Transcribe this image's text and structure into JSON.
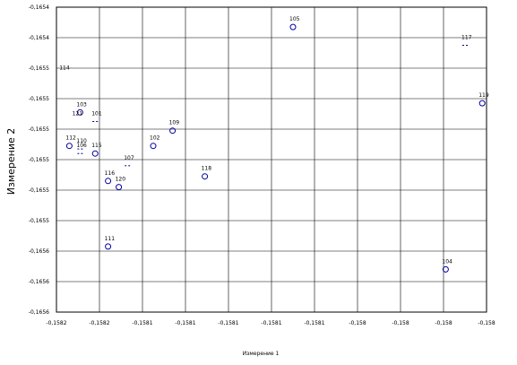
{
  "chart_data": {
    "type": "scatter",
    "xlabel": "Измерение 1",
    "ylabel": "Измерение 2",
    "xlim": [
      -0.1582,
      -0.158
    ],
    "ylim": [
      -0.1656,
      -0.1654
    ],
    "x_ticks": [
      {
        "v": -0.1582,
        "label": "-0,1582"
      },
      {
        "v": -0.15818,
        "label": "-0,1582"
      },
      {
        "v": -0.15816,
        "label": "-0,1581"
      },
      {
        "v": -0.15814,
        "label": "-0,1581"
      },
      {
        "v": -0.15812,
        "label": "-0,1581"
      },
      {
        "v": -0.1581,
        "label": "-0,1581"
      },
      {
        "v": -0.15808,
        "label": "-0,1581"
      },
      {
        "v": -0.15806,
        "label": "-0,158"
      },
      {
        "v": -0.15804,
        "label": "-0,158"
      },
      {
        "v": -0.15802,
        "label": "-0,158"
      },
      {
        "v": -0.158,
        "label": "-0,158"
      }
    ],
    "y_ticks": [
      {
        "v": -0.1654,
        "label": "-0,1654"
      },
      {
        "v": -0.16542,
        "label": "-0,1654"
      },
      {
        "v": -0.16544,
        "label": "-0,1655"
      },
      {
        "v": -0.16546,
        "label": "-0,1655"
      },
      {
        "v": -0.16548,
        "label": "-0,1655"
      },
      {
        "v": -0.1655,
        "label": "-0,1655"
      },
      {
        "v": -0.16552,
        "label": "-0,1655"
      },
      {
        "v": -0.16554,
        "label": "-0,1655"
      },
      {
        "v": -0.16556,
        "label": "-0,1656"
      },
      {
        "v": -0.16558,
        "label": "-0,1656"
      },
      {
        "v": -0.1656,
        "label": "-0,1656"
      }
    ],
    "grid": true,
    "points": [
      {
        "label": "105",
        "x": -0.15809,
        "y": -0.165413,
        "marker": "circle"
      },
      {
        "label": "117",
        "x": -0.15801,
        "y": -0.165425,
        "marker": "dash"
      },
      {
        "label": "114",
        "x": -0.158197,
        "y": -0.165445,
        "marker": "none"
      },
      {
        "label": "119",
        "x": -0.158002,
        "y": -0.165463,
        "marker": "circle"
      },
      {
        "label": "103",
        "x": -0.158189,
        "y": -0.165469,
        "marker": "circle"
      },
      {
        "label": "121",
        "x": -0.158191,
        "y": -0.165475,
        "marker": "none"
      },
      {
        "label": "101",
        "x": -0.158182,
        "y": -0.165475,
        "marker": "dash"
      },
      {
        "label": "109",
        "x": -0.158146,
        "y": -0.165481,
        "marker": "circle"
      },
      {
        "label": "112",
        "x": -0.158194,
        "y": -0.165491,
        "marker": "circle"
      },
      {
        "label": "110",
        "x": -0.158189,
        "y": -0.165493,
        "marker": "dash"
      },
      {
        "label": "106",
        "x": -0.158189,
        "y": -0.165496,
        "marker": "dash"
      },
      {
        "label": "102",
        "x": -0.158155,
        "y": -0.165491,
        "marker": "circle"
      },
      {
        "label": "115",
        "x": -0.158182,
        "y": -0.165496,
        "marker": "circle"
      },
      {
        "label": "107",
        "x": -0.158167,
        "y": -0.165504,
        "marker": "dash"
      },
      {
        "label": "118",
        "x": -0.158131,
        "y": -0.165511,
        "marker": "circle"
      },
      {
        "label": "116",
        "x": -0.158176,
        "y": -0.165514,
        "marker": "circle"
      },
      {
        "label": "120",
        "x": -0.158171,
        "y": -0.165518,
        "marker": "circle"
      },
      {
        "label": "111",
        "x": -0.158176,
        "y": -0.165557,
        "marker": "circle"
      },
      {
        "label": "104",
        "x": -0.158019,
        "y": -0.165572,
        "marker": "circle"
      }
    ]
  }
}
